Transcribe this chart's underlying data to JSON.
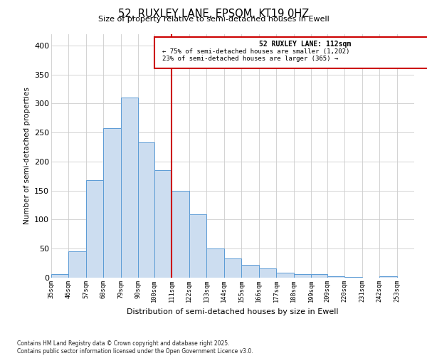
{
  "title": "52, RUXLEY LANE, EPSOM, KT19 0HZ",
  "subtitle": "Size of property relative to semi-detached houses in Ewell",
  "xlabel": "Distribution of semi-detached houses by size in Ewell",
  "ylabel": "Number of semi-detached properties",
  "bin_labels": [
    "35sqm",
    "46sqm",
    "57sqm",
    "68sqm",
    "79sqm",
    "90sqm",
    "100sqm",
    "111sqm",
    "122sqm",
    "133sqm",
    "144sqm",
    "155sqm",
    "166sqm",
    "177sqm",
    "188sqm",
    "199sqm",
    "209sqm",
    "220sqm",
    "231sqm",
    "242sqm",
    "253sqm"
  ],
  "bin_values": [
    6,
    45,
    168,
    258,
    310,
    233,
    185,
    150,
    109,
    50,
    33,
    22,
    16,
    8,
    6,
    6,
    2,
    1,
    0,
    3
  ],
  "bin_edges": [
    35,
    46,
    57,
    68,
    79,
    90,
    100,
    111,
    122,
    133,
    144,
    155,
    166,
    177,
    188,
    199,
    209,
    220,
    231,
    242,
    253
  ],
  "bar_face_color": "#ccddf0",
  "bar_edge_color": "#5b9bd5",
  "vline_x": 111,
  "vline_color": "#cc0000",
  "annotation_title": "52 RUXLEY LANE: 112sqm",
  "annotation_line1": "← 75% of semi-detached houses are smaller (1,202)",
  "annotation_line2": "23% of semi-detached houses are larger (365) →",
  "annotation_box_color": "#cc0000",
  "ylim": [
    0,
    420
  ],
  "yticks": [
    0,
    50,
    100,
    150,
    200,
    250,
    300,
    350,
    400
  ],
  "footnote1": "Contains HM Land Registry data © Crown copyright and database right 2025.",
  "footnote2": "Contains public sector information licensed under the Open Government Licence v3.0.",
  "background_color": "#ffffff",
  "grid_color": "#cccccc"
}
